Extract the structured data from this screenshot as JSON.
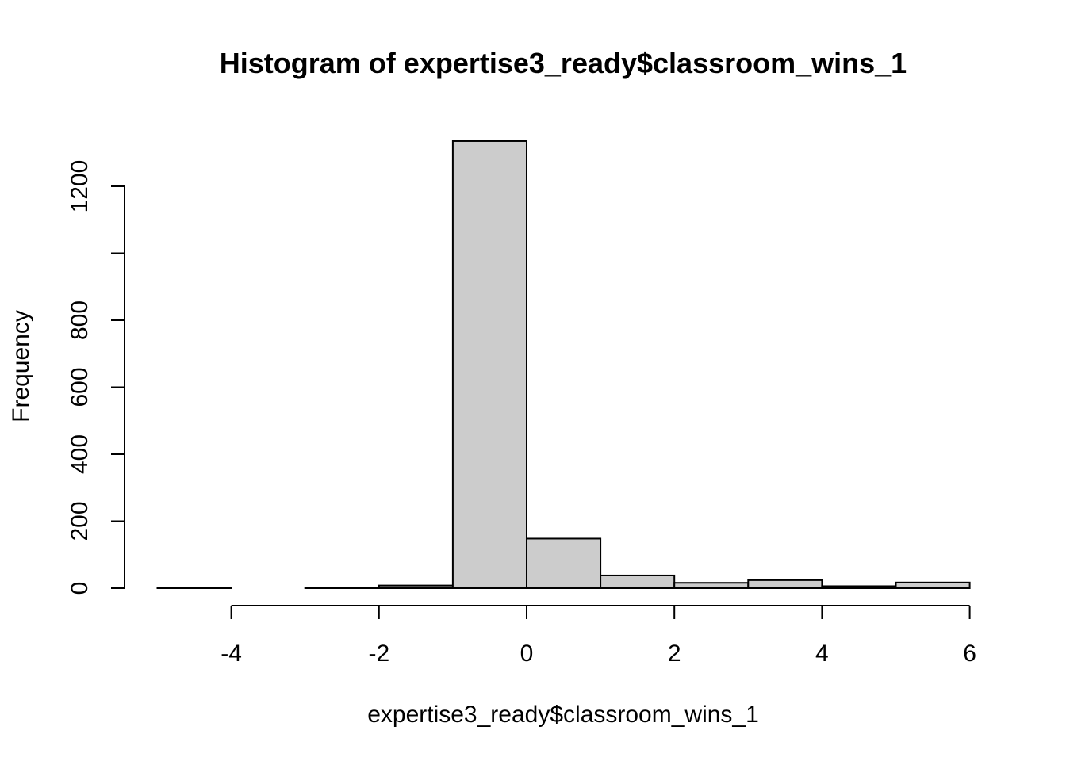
{
  "chart_data": {
    "type": "bar",
    "title": "Histogram of expertise3_ready$classroom_wins_1",
    "xlabel": "expertise3_ready$classroom_wins_1",
    "ylabel": "Frequency",
    "bins": [
      {
        "start": -5,
        "end": -4,
        "count": 1
      },
      {
        "start": -4,
        "end": -3,
        "count": 0
      },
      {
        "start": -3,
        "end": -2,
        "count": 2
      },
      {
        "start": -2,
        "end": -1,
        "count": 8
      },
      {
        "start": -1,
        "end": 0,
        "count": 1335
      },
      {
        "start": 0,
        "end": 1,
        "count": 148
      },
      {
        "start": 1,
        "end": 2,
        "count": 38
      },
      {
        "start": 2,
        "end": 3,
        "count": 16
      },
      {
        "start": 3,
        "end": 4,
        "count": 24
      },
      {
        "start": 4,
        "end": 5,
        "count": 6
      },
      {
        "start": 5,
        "end": 6,
        "count": 17
      }
    ],
    "xticks": [
      -4,
      -2,
      0,
      2,
      4,
      6
    ],
    "xtick_labels": [
      "-4",
      "-2",
      "0",
      "2",
      "4",
      "6"
    ],
    "yticks": [
      0,
      200,
      400,
      600,
      800,
      1000,
      1200
    ],
    "ytick_labels": [
      "0",
      "200",
      "400",
      "600",
      "800",
      "",
      "1200"
    ],
    "xlim": [
      -5,
      6
    ],
    "ylim": [
      0,
      1335
    ],
    "grid": false,
    "bar_color": "#cccccc",
    "edge_color": "#000000"
  }
}
